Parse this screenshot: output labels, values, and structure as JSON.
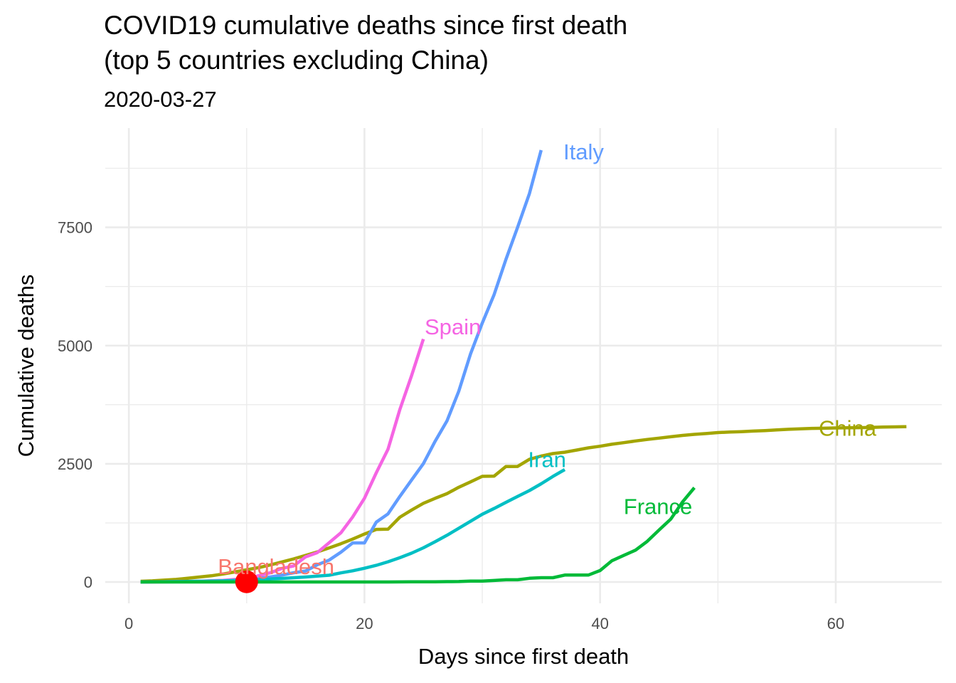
{
  "title_line1": "COVID19 cumulative deaths since first death",
  "title_line2": "(top 5 countries excluding China)",
  "subtitle": "2020-03-27",
  "chart_data": {
    "type": "line",
    "title": "COVID19 cumulative deaths since first death\n(top 5 countries excluding China)",
    "subtitle": "2020-03-27",
    "xlabel": "Days since first death",
    "ylabel": "Cumulative deaths",
    "xlim": [
      -2,
      69
    ],
    "ylim": [
      -450,
      9600
    ],
    "x_ticks": [
      0,
      20,
      40,
      60
    ],
    "x_tick_labels": [
      "0",
      "20",
      "40",
      "60"
    ],
    "y_ticks": [
      0,
      2500,
      5000,
      7500
    ],
    "y_tick_labels": [
      "0",
      "2500",
      "5000",
      "7500"
    ],
    "grid": true,
    "legend": "none (direct labels)",
    "series": [
      {
        "name": "China",
        "color": "#A3A500",
        "points": [
          [
            1,
            17
          ],
          [
            2,
            25
          ],
          [
            3,
            41
          ],
          [
            4,
            56
          ],
          [
            5,
            80
          ],
          [
            6,
            106
          ],
          [
            7,
            132
          ],
          [
            8,
            170
          ],
          [
            9,
            213
          ],
          [
            10,
            259
          ],
          [
            11,
            304
          ],
          [
            12,
            361
          ],
          [
            13,
            425
          ],
          [
            14,
            490
          ],
          [
            15,
            563
          ],
          [
            16,
            636
          ],
          [
            17,
            722
          ],
          [
            18,
            811
          ],
          [
            19,
            908
          ],
          [
            20,
            1016
          ],
          [
            21,
            1113
          ],
          [
            22,
            1118
          ],
          [
            23,
            1371
          ],
          [
            24,
            1523
          ],
          [
            25,
            1665
          ],
          [
            26,
            1770
          ],
          [
            27,
            1868
          ],
          [
            28,
            2004
          ],
          [
            29,
            2118
          ],
          [
            30,
            2236
          ],
          [
            31,
            2238
          ],
          [
            32,
            2443
          ],
          [
            33,
            2445
          ],
          [
            34,
            2595
          ],
          [
            35,
            2665
          ],
          [
            36,
            2717
          ],
          [
            37,
            2746
          ],
          [
            38,
            2790
          ],
          [
            39,
            2837
          ],
          [
            40,
            2872
          ],
          [
            41,
            2914
          ],
          [
            42,
            2947
          ],
          [
            43,
            2983
          ],
          [
            44,
            3015
          ],
          [
            45,
            3044
          ],
          [
            46,
            3072
          ],
          [
            47,
            3100
          ],
          [
            48,
            3123
          ],
          [
            49,
            3139
          ],
          [
            50,
            3161
          ],
          [
            51,
            3172
          ],
          [
            52,
            3180
          ],
          [
            53,
            3193
          ],
          [
            54,
            3203
          ],
          [
            55,
            3217
          ],
          [
            56,
            3230
          ],
          [
            57,
            3241
          ],
          [
            58,
            3249
          ],
          [
            59,
            3253
          ],
          [
            60,
            3259
          ],
          [
            61,
            3261
          ],
          [
            62,
            3265
          ],
          [
            63,
            3270
          ],
          [
            64,
            3277
          ],
          [
            65,
            3281
          ],
          [
            66,
            3285
          ]
        ],
        "label": "China",
        "label_x": 61,
        "label_y": 3260
      },
      {
        "name": "Italy",
        "color": "#619CFF",
        "points": [
          [
            1,
            2
          ],
          [
            2,
            3
          ],
          [
            3,
            7
          ],
          [
            4,
            10
          ],
          [
            5,
            12
          ],
          [
            6,
            17
          ],
          [
            7,
            21
          ],
          [
            8,
            29
          ],
          [
            9,
            34
          ],
          [
            10,
            52
          ],
          [
            11,
            79
          ],
          [
            12,
            107
          ],
          [
            13,
            148
          ],
          [
            14,
            197
          ],
          [
            15,
            233
          ],
          [
            16,
            366
          ],
          [
            17,
            463
          ],
          [
            18,
            631
          ],
          [
            19,
            827
          ],
          [
            20,
            827
          ],
          [
            21,
            1266
          ],
          [
            22,
            1441
          ],
          [
            23,
            1809
          ],
          [
            24,
            2158
          ],
          [
            25,
            2503
          ],
          [
            26,
            2978
          ],
          [
            27,
            3405
          ],
          [
            28,
            4032
          ],
          [
            29,
            4825
          ],
          [
            30,
            5476
          ],
          [
            31,
            6077
          ],
          [
            32,
            6820
          ],
          [
            33,
            7503
          ],
          [
            34,
            8215
          ],
          [
            35,
            9134
          ]
        ],
        "label": "Italy",
        "label_x": 38.6,
        "label_y": 9100,
        "label_anchor": "middle"
      },
      {
        "name": "Spain",
        "color": "#F564E3",
        "points": [
          [
            1,
            1
          ],
          [
            2,
            2
          ],
          [
            3,
            3
          ],
          [
            4,
            5
          ],
          [
            5,
            10
          ],
          [
            6,
            17
          ],
          [
            7,
            28
          ],
          [
            8,
            35
          ],
          [
            9,
            54
          ],
          [
            10,
            55
          ],
          [
            11,
            133
          ],
          [
            12,
            195
          ],
          [
            13,
            289
          ],
          [
            14,
            342
          ],
          [
            15,
            533
          ],
          [
            16,
            623
          ],
          [
            17,
            830
          ],
          [
            18,
            1043
          ],
          [
            19,
            1375
          ],
          [
            20,
            1772
          ],
          [
            21,
            2311
          ],
          [
            22,
            2808
          ],
          [
            23,
            3647
          ],
          [
            24,
            4365
          ],
          [
            25,
            5138
          ]
        ],
        "label": "Spain",
        "label_x": 27.5,
        "label_y": 5400,
        "label_anchor": "middle"
      },
      {
        "name": "Iran",
        "color": "#00BFC4",
        "points": [
          [
            1,
            2
          ],
          [
            2,
            4
          ],
          [
            3,
            5
          ],
          [
            4,
            8
          ],
          [
            5,
            12
          ],
          [
            6,
            16
          ],
          [
            7,
            19
          ],
          [
            8,
            26
          ],
          [
            9,
            34
          ],
          [
            10,
            43
          ],
          [
            11,
            54
          ],
          [
            12,
            66
          ],
          [
            13,
            77
          ],
          [
            14,
            92
          ],
          [
            15,
            107
          ],
          [
            16,
            124
          ],
          [
            17,
            145
          ],
          [
            18,
            194
          ],
          [
            19,
            237
          ],
          [
            20,
            291
          ],
          [
            21,
            354
          ],
          [
            22,
            429
          ],
          [
            23,
            514
          ],
          [
            24,
            611
          ],
          [
            25,
            724
          ],
          [
            26,
            853
          ],
          [
            27,
            988
          ],
          [
            28,
            1135
          ],
          [
            29,
            1284
          ],
          [
            30,
            1433
          ],
          [
            31,
            1556
          ],
          [
            32,
            1685
          ],
          [
            33,
            1812
          ],
          [
            34,
            1934
          ],
          [
            35,
            2077
          ],
          [
            36,
            2234
          ],
          [
            37,
            2378
          ]
        ],
        "label": "Iran",
        "label_x": 35.5,
        "label_y": 2600,
        "label_anchor": "middle"
      },
      {
        "name": "France",
        "color": "#00BA38",
        "points": [
          [
            1,
            1
          ],
          [
            2,
            1
          ],
          [
            3,
            1
          ],
          [
            4,
            1
          ],
          [
            5,
            1
          ],
          [
            6,
            1
          ],
          [
            7,
            1
          ],
          [
            8,
            1
          ],
          [
            9,
            1
          ],
          [
            10,
            1
          ],
          [
            11,
            1
          ],
          [
            12,
            1
          ],
          [
            13,
            1
          ],
          [
            14,
            1
          ],
          [
            15,
            1
          ],
          [
            16,
            1
          ],
          [
            17,
            1
          ],
          [
            18,
            1
          ],
          [
            19,
            2
          ],
          [
            20,
            2
          ],
          [
            21,
            2
          ],
          [
            22,
            2
          ],
          [
            23,
            3
          ],
          [
            24,
            4
          ],
          [
            25,
            4
          ],
          [
            26,
            6
          ],
          [
            27,
            9
          ],
          [
            28,
            11
          ],
          [
            29,
            19
          ],
          [
            30,
            19
          ],
          [
            31,
            33
          ],
          [
            32,
            48
          ],
          [
            33,
            48
          ],
          [
            34,
            79
          ],
          [
            35,
            91
          ],
          [
            36,
            91
          ],
          [
            37,
            148
          ],
          [
            38,
            148
          ],
          [
            39,
            148
          ],
          [
            40,
            243
          ],
          [
            41,
            450
          ],
          [
            42,
            562
          ],
          [
            43,
            674
          ],
          [
            44,
            860
          ],
          [
            45,
            1100
          ],
          [
            46,
            1331
          ],
          [
            47,
            1696
          ],
          [
            48,
            1995
          ]
        ],
        "label": "France",
        "label_x": 42,
        "label_y": 1600,
        "label_anchor": "start"
      },
      {
        "name": "Bangladesh",
        "color": "#F8766D",
        "points": [
          [
            10,
            5
          ]
        ],
        "label": "Bangladesh",
        "label_x": 12.5,
        "label_y": 330,
        "label_anchor": "middle",
        "marker_color": "#FF0000"
      }
    ]
  }
}
